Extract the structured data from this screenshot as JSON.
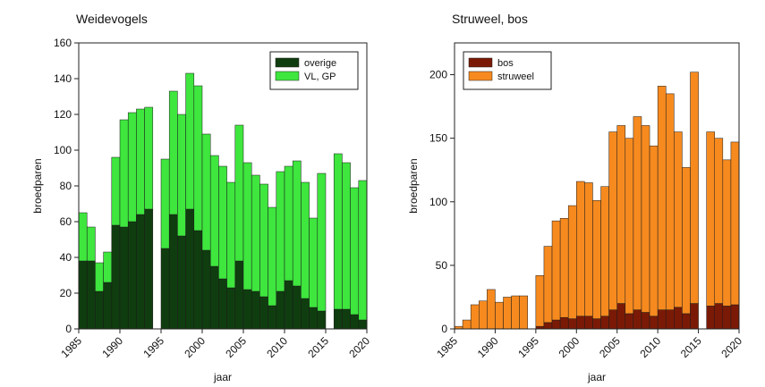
{
  "chart_data": [
    {
      "type": "stacked_bar",
      "title": "Weidevogels",
      "xlabel": "jaar",
      "ylabel": "broedparen",
      "x": [
        1986,
        1987,
        1988,
        1989,
        1990,
        1991,
        1992,
        1993,
        1994,
        1995,
        1996,
        1997,
        1998,
        1999,
        2000,
        2001,
        2002,
        2003,
        2004,
        2005,
        2006,
        2007,
        2008,
        2009,
        2010,
        2011,
        2012,
        2013,
        2014,
        2015,
        2016,
        2017,
        2018,
        2019,
        2020
      ],
      "series": [
        {
          "name": "overige",
          "color": "#0f3d0f",
          "values": [
            38,
            38,
            21,
            26,
            58,
            57,
            60,
            64,
            67,
            null,
            45,
            64,
            52,
            67,
            55,
            44,
            35,
            28,
            23,
            38,
            22,
            21,
            18,
            13,
            21,
            27,
            24,
            17,
            12,
            10,
            null,
            11,
            11,
            8,
            5
          ]
        },
        {
          "name": "VL, GP",
          "color": "#3ee63e",
          "values": [
            27,
            19,
            16,
            17,
            38,
            60,
            61,
            59,
            57,
            null,
            50,
            69,
            68,
            76,
            81,
            65,
            62,
            63,
            59,
            76,
            71,
            65,
            63,
            55,
            67,
            64,
            70,
            65,
            50,
            77,
            null,
            87,
            82,
            71,
            78
          ]
        }
      ],
      "xlim": [
        1985,
        2020
      ],
      "xticks": [
        1985,
        1990,
        1995,
        2000,
        2005,
        2010,
        2015,
        2020
      ],
      "ylim": [
        0,
        160
      ],
      "yticks": [
        0,
        20,
        40,
        60,
        80,
        100,
        120,
        140,
        160
      ],
      "legend": "top-right"
    },
    {
      "type": "stacked_bar",
      "title": "Struweel, bos",
      "xlabel": "jaar",
      "ylabel": "broedparen",
      "x": [
        1986,
        1987,
        1988,
        1989,
        1990,
        1991,
        1992,
        1993,
        1994,
        1995,
        1996,
        1997,
        1998,
        1999,
        2000,
        2001,
        2002,
        2003,
        2004,
        2005,
        2006,
        2007,
        2008,
        2009,
        2010,
        2011,
        2012,
        2013,
        2014,
        2015,
        2016,
        2017,
        2018,
        2019,
        2020
      ],
      "series": [
        {
          "name": "bos",
          "color": "#7a1a06",
          "values": [
            0,
            0,
            0,
            0,
            0,
            0,
            0,
            0,
            0,
            null,
            2,
            5,
            7,
            9,
            8,
            10,
            10,
            8,
            10,
            15,
            20,
            12,
            15,
            13,
            10,
            15,
            15,
            17,
            12,
            20,
            null,
            18,
            20,
            18,
            19
          ]
        },
        {
          "name": "struweel",
          "color": "#f68a1f",
          "values": [
            2,
            7,
            19,
            22,
            31,
            21,
            25,
            26,
            26,
            null,
            40,
            60,
            78,
            78,
            89,
            106,
            105,
            93,
            102,
            140,
            140,
            138,
            152,
            147,
            134,
            176,
            170,
            138,
            115,
            182,
            null,
            137,
            130,
            115,
            128
          ]
        }
      ],
      "xlim": [
        1985,
        2020
      ],
      "xticks": [
        1985,
        1990,
        1995,
        2000,
        2005,
        2010,
        2015,
        2020
      ],
      "ylim": [
        0,
        225
      ],
      "yticks": [
        0,
        50,
        100,
        150,
        200
      ],
      "legend": "top-left"
    }
  ]
}
